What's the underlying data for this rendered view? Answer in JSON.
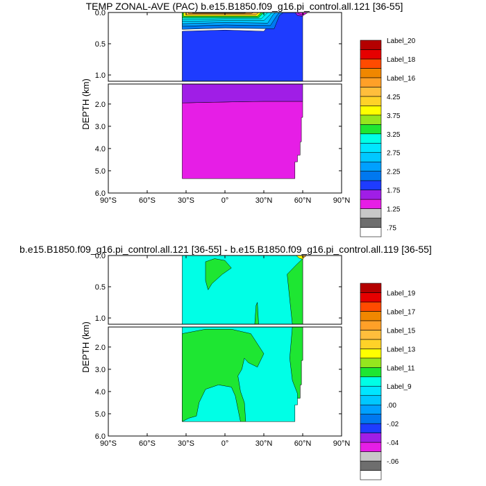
{
  "colors": {
    "swatches": [
      "#ffffff",
      "#6e6e6e",
      "#c8c8c8",
      "#e61ee6",
      "#a01ee6",
      "#1e3cff",
      "#0078f0",
      "#00a0ff",
      "#00c8ff",
      "#00e6ff",
      "#00ffe6",
      "#1ee632",
      "#96e61e",
      "#ffff00",
      "#ffd228",
      "#ffbe3c",
      "#ffa028",
      "#f08700",
      "#ff4b00",
      "#e60000",
      "#b40000"
    ],
    "contour": "#000000",
    "frame": "#000000"
  },
  "chart_data": [
    {
      "type": "heatmap",
      "title": "TEMP ZONAL-AVE (PAC) b.e15.B1850.f09_g16.pi_control.all.121 [36-55]",
      "xlabel": "",
      "ylabel": "DEPTH (km)",
      "xlim": [
        -90,
        90
      ],
      "x_ticks": [
        {
          "value": -90,
          "label": "90°S"
        },
        {
          "value": -60,
          "label": "60°S"
        },
        {
          "value": -30,
          "label": "30°S"
        },
        {
          "value": 0,
          "label": "0°"
        },
        {
          "value": 30,
          "label": "30°N"
        },
        {
          "value": 60,
          "label": "60°N"
        },
        {
          "value": 90,
          "label": "90°N"
        }
      ],
      "upper_panel": {
        "ylim": [
          0,
          1.1
        ],
        "y_ticks": [
          {
            "value": 0,
            "label": "0.0"
          },
          {
            "value": 0.5,
            "label": "0.5"
          },
          {
            "value": 1.0,
            "label": "1.0"
          }
        ]
      },
      "lower_panel": {
        "ylim": [
          1.1,
          6.0
        ],
        "y_ticks": [
          {
            "value": 2,
            "label": "2.0"
          },
          {
            "value": 3,
            "label": "3.0"
          },
          {
            "value": 4,
            "label": "4.0"
          },
          {
            "value": 5,
            "label": "5.0"
          },
          {
            "value": 6,
            "label": "6.0"
          }
        ]
      },
      "colorbar_labels": [
        {
          "index": 20,
          "label": "Label_20"
        },
        {
          "index": 18,
          "label": "Label_18"
        },
        {
          "index": 16,
          "label": "Label_16"
        },
        {
          "index": 14,
          "label": "4.25"
        },
        {
          "index": 12,
          "label": "3.75"
        },
        {
          "index": 10,
          "label": "3.25"
        },
        {
          "index": 8,
          "label": "2.75"
        },
        {
          "index": 6,
          "label": "2.25"
        },
        {
          "index": 4,
          "label": "1.75"
        },
        {
          "index": 2,
          "label": "1.25"
        },
        {
          "index": 0,
          "label": ".75"
        }
      ],
      "regions": [
        {
          "name": "deep-magenta",
          "color_index": 3,
          "panel": "lower",
          "points": [
            [
              -33,
              1.95
            ],
            [
              -10,
              1.92
            ],
            [
              10,
              1.9
            ],
            [
              30,
              1.88
            ],
            [
              60,
              1.88
            ],
            [
              60,
              2.6
            ],
            [
              59,
              2.6
            ],
            [
              59,
              3.7
            ],
            [
              58,
              3.7
            ],
            [
              58,
              4.3
            ],
            [
              56,
              4.3
            ],
            [
              56,
              4.6
            ],
            [
              54,
              4.6
            ],
            [
              54,
              5.35
            ],
            [
              -33,
              5.35
            ]
          ]
        },
        {
          "name": "intermediate-purple",
          "color_index": 4,
          "panel": "lower",
          "points": [
            [
              -33,
              1.1
            ],
            [
              60,
              1.1
            ],
            [
              60,
              1.88
            ],
            [
              30,
              1.88
            ],
            [
              10,
              1.9
            ],
            [
              -10,
              1.92
            ],
            [
              -33,
              1.95
            ]
          ]
        },
        {
          "name": "upper-blue",
          "color_index": 5,
          "panel": "upper",
          "points": [
            [
              -33,
              0.3
            ],
            [
              0,
              0.28
            ],
            [
              30,
              0.3
            ],
            [
              40,
              0.05
            ],
            [
              45,
              0
            ],
            [
              60,
              0
            ],
            [
              60,
              1.1
            ],
            [
              -33,
              1.1
            ]
          ]
        },
        {
          "name": "upper-band-1",
          "color_index": 6,
          "panel": "upper",
          "points": [
            [
              -33,
              0.27
            ],
            [
              0,
              0.25
            ],
            [
              38,
              0.26
            ],
            [
              42,
              0.05
            ],
            [
              45,
              0
            ],
            [
              -33,
              0
            ]
          ]
        },
        {
          "name": "upper-band-2",
          "color_index": 7,
          "panel": "upper",
          "points": [
            [
              -33,
              0.22
            ],
            [
              0,
              0.2
            ],
            [
              35,
              0.21
            ],
            [
              40,
              0.05
            ],
            [
              42,
              0
            ],
            [
              -33,
              0
            ]
          ]
        },
        {
          "name": "upper-band-3",
          "color_index": 8,
          "panel": "upper",
          "points": [
            [
              -33,
              0.18
            ],
            [
              0,
              0.16
            ],
            [
              33,
              0.17
            ],
            [
              37,
              0.04
            ],
            [
              39,
              0
            ],
            [
              -33,
              0
            ]
          ]
        },
        {
          "name": "upper-band-4",
          "color_index": 9,
          "panel": "upper",
          "points": [
            [
              -33,
              0.14
            ],
            [
              0,
              0.13
            ],
            [
              30,
              0.13
            ],
            [
              35,
              0.03
            ],
            [
              36,
              0
            ],
            [
              -33,
              0
            ]
          ]
        },
        {
          "name": "upper-band-5",
          "color_index": 10,
          "panel": "upper",
          "points": [
            [
              -33,
              0.11
            ],
            [
              0,
              0.1
            ],
            [
              28,
              0.1
            ],
            [
              33,
              0
            ],
            [
              -33,
              0
            ]
          ]
        },
        {
          "name": "upper-band-6",
          "color_index": 11,
          "panel": "upper",
          "points": [
            [
              -33,
              0.08
            ],
            [
              0,
              0.08
            ],
            [
              26,
              0.08
            ],
            [
              30,
              0
            ],
            [
              -33,
              0
            ]
          ]
        },
        {
          "name": "upper-band-7",
          "color_index": 13,
          "panel": "upper",
          "points": [
            [
              -32,
              0.06
            ],
            [
              0,
              0.06
            ],
            [
              25,
              0.06
            ],
            [
              28,
              0
            ],
            [
              -32,
              0
            ]
          ]
        },
        {
          "name": "upper-band-8",
          "color_index": 15,
          "panel": "upper",
          "points": [
            [
              -30,
              0.04
            ],
            [
              0,
              0.04
            ],
            [
              24,
              0.04
            ],
            [
              26,
              0
            ],
            [
              -30,
              0
            ]
          ]
        },
        {
          "name": "upper-band-9",
          "color_index": 16,
          "panel": "upper",
          "points": [
            [
              -28,
              0.02
            ],
            [
              0,
              0.02
            ],
            [
              20,
              0.02
            ],
            [
              22,
              0
            ],
            [
              -28,
              0
            ]
          ]
        },
        {
          "name": "upper-band-10",
          "color_index": 17,
          "panel": "upper",
          "points": [
            [
              -25,
              0.01
            ],
            [
              15,
              0.01
            ],
            [
              17,
              0
            ],
            [
              -25,
              0
            ]
          ]
        },
        {
          "name": "north-purple",
          "color_index": 4,
          "panel": "upper",
          "points": [
            [
              54,
              0
            ],
            [
              62,
              0
            ],
            [
              60,
              0.06
            ],
            [
              56,
              0.05
            ]
          ]
        },
        {
          "name": "north-magenta",
          "color_index": 3,
          "panel": "upper",
          "points": [
            [
              56,
              0
            ],
            [
              62,
              0
            ],
            [
              60,
              0.04
            ],
            [
              58,
              0.03
            ]
          ]
        },
        {
          "name": "north-tip-magenta",
          "color_index": 3,
          "panel": "upper",
          "points": [
            [
              60,
              0
            ],
            [
              64,
              0
            ],
            [
              61,
              0.04
            ]
          ]
        }
      ]
    },
    {
      "type": "heatmap",
      "title": "b.e15.B1850.f09_g16.pi_control.all.121 [36-55] - b.e15.B1850.f09_g16.pi_control.all.119 [36-55]",
      "xlabel": "",
      "ylabel": "DEPTH (km)",
      "xlim": [
        -90,
        90
      ],
      "x_ticks": [
        {
          "value": -90,
          "label": "90°S"
        },
        {
          "value": -60,
          "label": "60°S"
        },
        {
          "value": -30,
          "label": "30°S"
        },
        {
          "value": 0,
          "label": "0°"
        },
        {
          "value": 30,
          "label": "30°N"
        },
        {
          "value": 60,
          "label": "60°N"
        },
        {
          "value": 90,
          "label": "90°N"
        }
      ],
      "upper_panel": {
        "ylim": [
          0,
          1.1
        ],
        "y_ticks": [
          {
            "value": 0,
            "label": "0.0"
          },
          {
            "value": 0.5,
            "label": "0.5"
          },
          {
            "value": 1.0,
            "label": "1.0"
          }
        ]
      },
      "lower_panel": {
        "ylim": [
          1.1,
          6.0
        ],
        "y_ticks": [
          {
            "value": 2,
            "label": "2.0"
          },
          {
            "value": 3,
            "label": "3.0"
          },
          {
            "value": 4,
            "label": "4.0"
          },
          {
            "value": 5,
            "label": "5.0"
          },
          {
            "value": 6,
            "label": "6.0"
          }
        ]
      },
      "colorbar_labels": [
        {
          "index": 19,
          "label": "Label_19"
        },
        {
          "index": 17,
          "label": "Label_17"
        },
        {
          "index": 15,
          "label": "Label_15"
        },
        {
          "index": 13,
          "label": "Label_13"
        },
        {
          "index": 11,
          "label": "Label_11"
        },
        {
          "index": 9,
          "label": "Label_9"
        },
        {
          "index": 7,
          "label": ".00"
        },
        {
          "index": 5,
          "label": "-.02"
        },
        {
          "index": 3,
          "label": "-.04"
        },
        {
          "index": 1,
          "label": "-.06"
        }
      ],
      "regions": [
        {
          "name": "base-cyan-upper",
          "color_index": 10,
          "panel": "upper",
          "points": [
            [
              -33,
              0
            ],
            [
              60,
              0
            ],
            [
              60,
              1.1
            ],
            [
              -33,
              1.1
            ]
          ]
        },
        {
          "name": "base-cyan-lower",
          "color_index": 10,
          "panel": "lower",
          "points": [
            [
              -33,
              1.1
            ],
            [
              60,
              1.1
            ],
            [
              60,
              2.6
            ],
            [
              59,
              2.6
            ],
            [
              59,
              3.7
            ],
            [
              58,
              3.7
            ],
            [
              58,
              4.3
            ],
            [
              56,
              4.3
            ],
            [
              56,
              4.6
            ],
            [
              54,
              4.6
            ],
            [
              54,
              5.35
            ],
            [
              -33,
              5.35
            ]
          ]
        },
        {
          "name": "green-upper-patch",
          "color_index": 11,
          "panel": "upper",
          "points": [
            [
              -15,
              0.1
            ],
            [
              -8,
              0.05
            ],
            [
              0,
              0.08
            ],
            [
              5,
              0.2
            ],
            [
              -2,
              0.3
            ],
            [
              -10,
              0.45
            ],
            [
              -13,
              0.55
            ],
            [
              -15,
              0.4
            ]
          ]
        },
        {
          "name": "green-right-upper",
          "color_index": 11,
          "panel": "upper",
          "points": [
            [
              48,
              0.3
            ],
            [
              55,
              0.15
            ],
            [
              60,
              0.05
            ],
            [
              60,
              1.1
            ],
            [
              52,
              1.1
            ],
            [
              50,
              0.7
            ]
          ]
        },
        {
          "name": "green-spike",
          "color_index": 11,
          "panel": "upper",
          "points": [
            [
              23,
              1.1
            ],
            [
              24,
              0.8
            ],
            [
              25,
              0.75
            ],
            [
              26,
              1.1
            ]
          ]
        },
        {
          "name": "green-right-lower",
          "color_index": 11,
          "panel": "lower",
          "points": [
            [
              52,
              1.1
            ],
            [
              60,
              1.1
            ],
            [
              60,
              2.6
            ],
            [
              59,
              2.6
            ],
            [
              59,
              3.7
            ],
            [
              58,
              3.7
            ],
            [
              58,
              4.3
            ],
            [
              56,
              4.3
            ],
            [
              56,
              4.1
            ],
            [
              52,
              3.5
            ],
            [
              50,
              2.5
            ]
          ]
        },
        {
          "name": "green-left-lower",
          "color_index": 11,
          "panel": "lower",
          "points": [
            [
              -33,
              1.4
            ],
            [
              -15,
              1.2
            ],
            [
              5,
              1.2
            ],
            [
              20,
              1.4
            ],
            [
              30,
              2.3
            ],
            [
              25,
              2.9
            ],
            [
              18,
              2.7
            ],
            [
              15,
              2.5
            ],
            [
              13,
              3.0
            ],
            [
              10,
              3.3
            ],
            [
              12,
              4.0
            ],
            [
              15,
              4.5
            ],
            [
              16,
              5.35
            ],
            [
              12,
              5.35
            ],
            [
              8,
              4.2
            ],
            [
              5,
              3.8
            ],
            [
              -5,
              3.7
            ],
            [
              -15,
              3.9
            ],
            [
              -20,
              4.5
            ],
            [
              -22,
              5.1
            ],
            [
              -28,
              5.2
            ],
            [
              -33,
              5.35
            ]
          ]
        },
        {
          "name": "north-yellow",
          "color_index": 13,
          "panel": "upper",
          "points": [
            [
              55,
              0
            ],
            [
              62,
              0
            ],
            [
              60,
              0.06
            ],
            [
              57,
              0.04
            ]
          ]
        },
        {
          "name": "north-orange",
          "color_index": 16,
          "panel": "upper",
          "points": [
            [
              59,
              0
            ],
            [
              63,
              0
            ],
            [
              61,
              0.03
            ]
          ]
        }
      ]
    }
  ]
}
